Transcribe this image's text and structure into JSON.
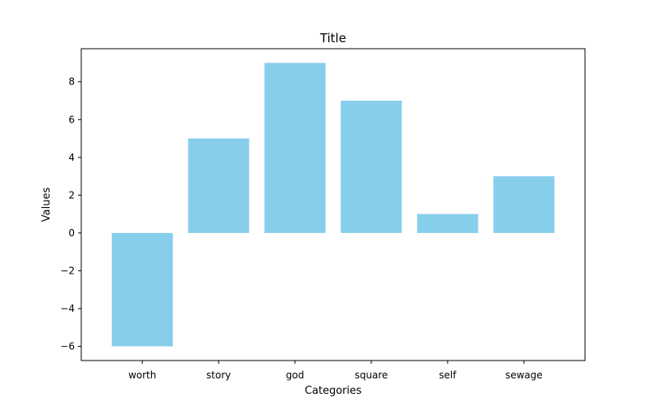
{
  "chart_data": {
    "type": "bar",
    "title": "Title",
    "xlabel": "Categories",
    "ylabel": "Values",
    "categories": [
      "worth",
      "story",
      "god",
      "square",
      "self",
      "sewage"
    ],
    "values": [
      -6,
      5,
      9,
      7,
      1,
      3
    ],
    "ylim": [
      -6.75,
      9.75
    ],
    "yticks": [
      -6,
      -4,
      -2,
      0,
      2,
      4,
      6,
      8
    ],
    "ytick_labels": [
      "−6",
      "−4",
      "−2",
      "0",
      "2",
      "4",
      "6",
      "8"
    ],
    "bar_color": "#87ceeb",
    "grid": false,
    "legend": "none"
  }
}
